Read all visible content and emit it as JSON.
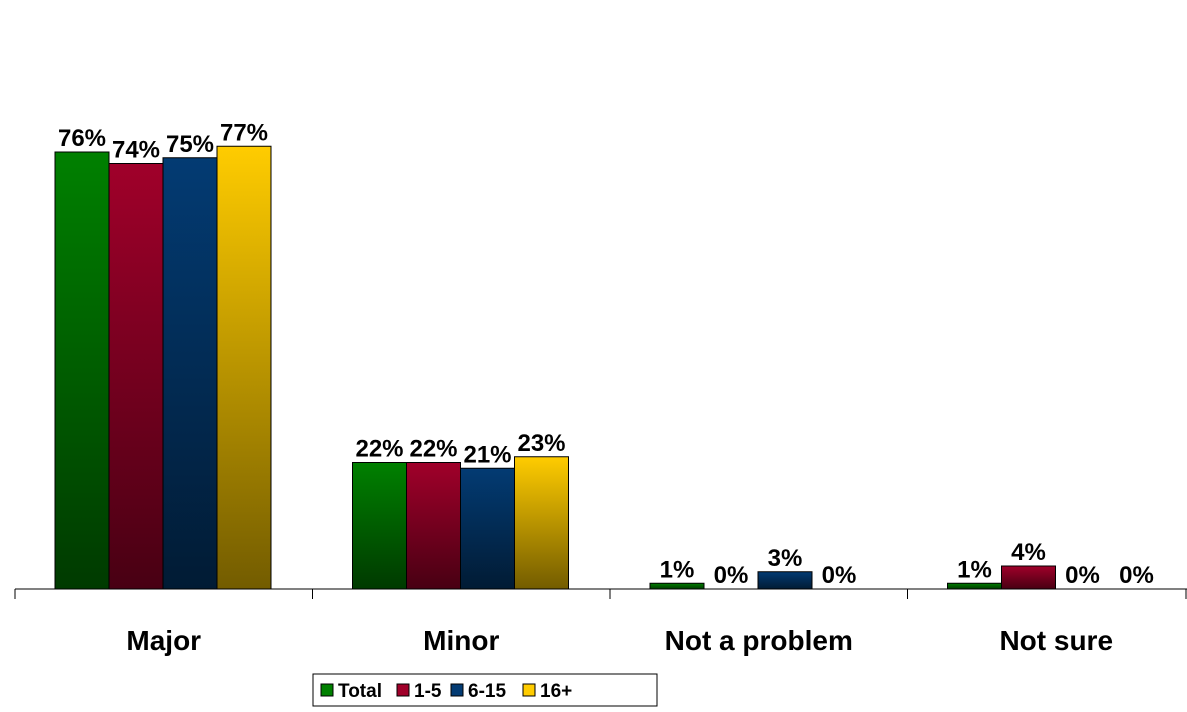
{
  "chart_data": {
    "type": "bar",
    "title": "",
    "xlabel": "",
    "ylabel": "",
    "categories": [
      "Major",
      "Minor",
      "Not a problem",
      "Not sure"
    ],
    "series": [
      {
        "name": "Total",
        "color": "#008000",
        "values": [
          76,
          22,
          1,
          1
        ],
        "labels": [
          "76%",
          "22%",
          "1%",
          "1%"
        ]
      },
      {
        "name": "1-5",
        "color": "#a0002a",
        "values": [
          74,
          22,
          0,
          4
        ],
        "labels": [
          "74%",
          "22%",
          "0%",
          "4%"
        ]
      },
      {
        "name": "6-15",
        "color": "#033b73",
        "values": [
          75,
          21,
          3,
          0
        ],
        "labels": [
          "75%",
          "21%",
          "3%",
          "0%"
        ]
      },
      {
        "name": "16+",
        "color": "#ffcc00",
        "values": [
          77,
          23,
          0,
          0
        ],
        "labels": [
          "77%",
          "23%",
          "0%",
          "0%"
        ]
      }
    ],
    "ylim": [
      0,
      100
    ],
    "grid": false,
    "legend_position": "bottom"
  }
}
